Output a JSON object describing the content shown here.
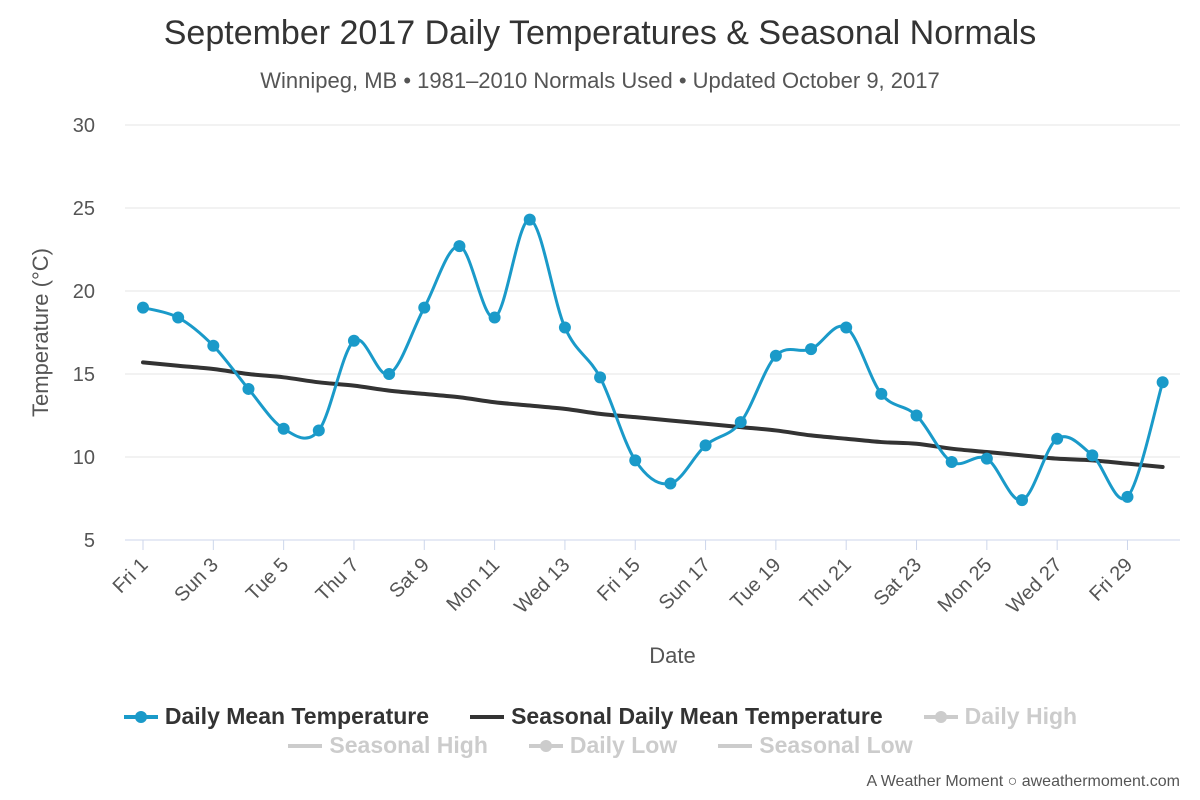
{
  "chart_data": {
    "type": "line",
    "title": "September 2017 Daily Temperatures & Seasonal Normals",
    "subtitle": "Winnipeg, MB • 1981–2010 Normals Used • Updated October 9, 2017",
    "xlabel": "Date",
    "ylabel": "Temperature (°C)",
    "ylim": [
      5,
      30
    ],
    "yticks": [
      5,
      10,
      15,
      20,
      25,
      30
    ],
    "grid": true,
    "legend_placement": "bottom",
    "x": [
      1,
      2,
      3,
      4,
      5,
      6,
      7,
      8,
      9,
      10,
      11,
      12,
      13,
      14,
      15,
      16,
      17,
      18,
      19,
      20,
      21,
      22,
      23,
      24,
      25,
      26,
      27,
      28,
      29,
      30
    ],
    "xtick_labels": [
      "Fri 1",
      "Sun 3",
      "Tue 5",
      "Thu 7",
      "Sat 9",
      "Mon 11",
      "Wed 13",
      "Fri 15",
      "Sun 17",
      "Tue 19",
      "Thu 21",
      "Sat 23",
      "Mon 25",
      "Wed 27",
      "Fri 29"
    ],
    "xtick_days": [
      1,
      3,
      5,
      7,
      9,
      11,
      13,
      15,
      17,
      19,
      21,
      23,
      25,
      27,
      29
    ],
    "series": [
      {
        "name": "Daily Mean Temperature",
        "color": "#1a9ac9",
        "marker": true,
        "visible": true,
        "values": [
          19.0,
          18.4,
          16.7,
          14.1,
          11.7,
          11.6,
          17.0,
          15.0,
          19.0,
          22.7,
          18.4,
          24.3,
          17.8,
          14.8,
          9.8,
          8.4,
          10.7,
          12.1,
          16.1,
          16.5,
          17.8,
          13.8,
          12.5,
          9.7,
          9.9,
          7.4,
          11.1,
          10.1,
          7.6,
          14.5
        ]
      },
      {
        "name": "Seasonal Daily Mean Temperature",
        "color": "#333333",
        "marker": false,
        "visible": true,
        "values": [
          15.7,
          15.5,
          15.3,
          15.0,
          14.8,
          14.5,
          14.3,
          14.0,
          13.8,
          13.6,
          13.3,
          13.1,
          12.9,
          12.6,
          12.4,
          12.2,
          12.0,
          11.8,
          11.6,
          11.3,
          11.1,
          10.9,
          10.8,
          10.5,
          10.3,
          10.1,
          9.9,
          9.8,
          9.6,
          9.4
        ]
      },
      {
        "name": "Daily High",
        "color": "#cccccc",
        "marker": true,
        "visible": false
      },
      {
        "name": "Seasonal High",
        "color": "#cccccc",
        "marker": false,
        "visible": false
      },
      {
        "name": "Daily Low",
        "color": "#cccccc",
        "marker": true,
        "visible": false
      },
      {
        "name": "Seasonal Low",
        "color": "#cccccc",
        "marker": false,
        "visible": false
      }
    ]
  },
  "legend": {
    "items": [
      {
        "label": "Daily Mean Temperature"
      },
      {
        "label": "Seasonal Daily Mean Temperature"
      },
      {
        "label": "Daily High"
      },
      {
        "label": "Seasonal High"
      },
      {
        "label": "Daily Low"
      },
      {
        "label": "Seasonal Low"
      }
    ]
  },
  "credits": "A Weather Moment ○ aweathermoment.com"
}
